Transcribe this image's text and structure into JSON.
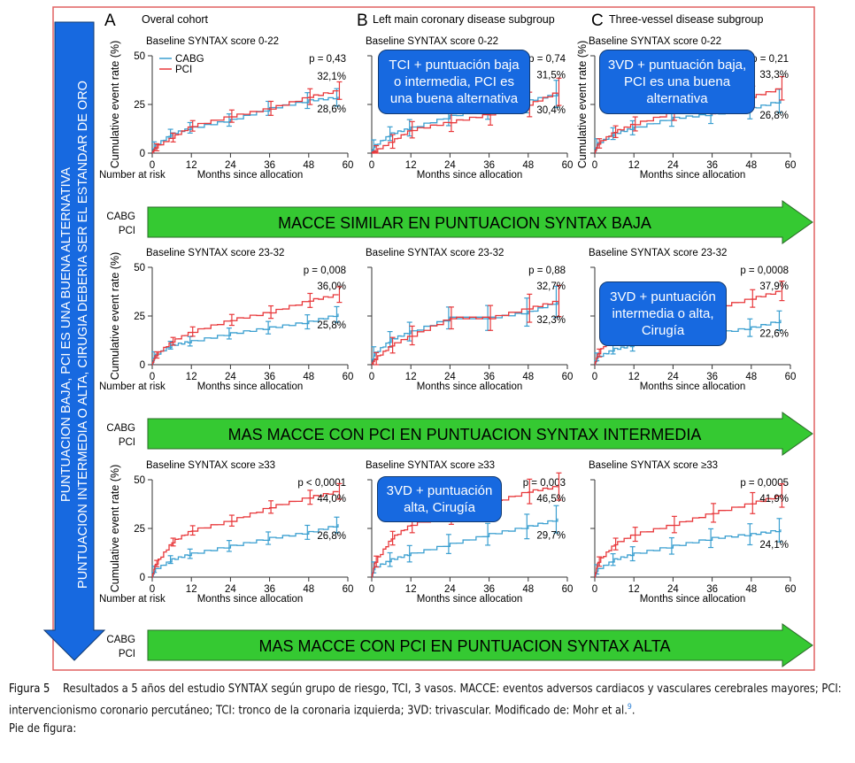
{
  "colors": {
    "cabg": "#3a9fd0",
    "pci": "#e8383b",
    "arrow_green": "#35c932",
    "arrow_blue": "#1769e0",
    "frame": "#e06060"
  },
  "vertical_arrow": {
    "line1": "PUNTUACION BAJA, PCI ES UNA BUENA ALTERNATIVA",
    "line2": "PUNTUACION INTERMEDIA O ALTA, CIRUGIA DEBERIA SER EL ESTANDAR DE ORO"
  },
  "columns": [
    {
      "letter": "A",
      "title": "Overal cohort"
    },
    {
      "letter": "B",
      "title": "Left main coronary disease subgroup"
    },
    {
      "letter": "C",
      "title": "Three-vessel disease subgroup"
    }
  ],
  "rows": [
    {
      "arrow_text": "MACCE SIMILAR EN PUNTUACION SYNTAX BAJA"
    },
    {
      "arrow_text": "MAS MACCE CON PCI EN PUNTUACION SYNTAX INTERMEDIA"
    },
    {
      "arrow_text": "MAS MACCE CON PCI EN PUNTUACION SYNTAX ALTA"
    }
  ],
  "risk_labels": {
    "number_at_risk": "Number at risk",
    "cabg": "CABG",
    "pci": "PCI"
  },
  "callouts": [
    {
      "text": "TCI + puntuación baja o intermedia, PCI es una buena alternativa"
    },
    {
      "text": "3VD + puntuación baja, PCI es una buena alternativa"
    },
    {
      "text": "3VD + puntuación intermedia o alta, Cirugía"
    },
    {
      "text": "3VD + puntuación alta, Cirugía"
    }
  ],
  "caption": {
    "label": "Figura 5",
    "text": "Resultados a 5 años del estudio SYNTAX según grupo de riesgo, TCI, 3 vasos. MACCE: eventos adversos cardiacos y vasculares cerebrales mayores; PCI: intervencionismo coronario percutáneo; TCI: tronco de la coronaria izquierda; 3VD: trivascular. Modificado de: Mohr et al.",
    "ref": "9",
    "tail": ".",
    "footer": "Pie de figura:"
  },
  "chart_data": {
    "type": "line",
    "xlabel": "Months since allocation",
    "ylabel": "Cumulative event rate (%)",
    "xticks": [
      0,
      12,
      24,
      36,
      48,
      60
    ],
    "yticks": [
      0,
      25,
      50
    ],
    "xlim": [
      0,
      60
    ],
    "ylim": [
      0,
      50
    ],
    "legend": [
      "CABG",
      "PCI"
    ],
    "legend_placement": "top-left",
    "months": [
      0,
      1,
      6,
      12,
      24,
      36,
      48,
      57
    ],
    "panels": [
      {
        "col": 0,
        "row": 0,
        "subtitle": "Baseline SYNTAX score 0-22",
        "p": "p = 0,43",
        "cabg_end": "28,6%",
        "pci_end": "32,1%",
        "cabg": [
          0,
          4,
          10,
          13,
          17,
          23,
          27,
          28.6
        ],
        "pci": [
          0,
          3,
          8,
          14,
          19,
          23,
          29,
          32.1
        ],
        "ci": 4.5
      },
      {
        "col": 1,
        "row": 0,
        "subtitle": "Baseline SYNTAX score 0-22",
        "p": "p = 0,74",
        "cabg_end": "30,4%",
        "pci_end": "31,5%",
        "cabg": [
          0,
          4,
          10,
          13,
          19,
          23,
          27,
          30.4
        ],
        "pci": [
          0,
          1,
          6,
          12,
          16,
          20,
          25,
          31.5
        ],
        "ci": 7
      },
      {
        "col": 2,
        "row": 0,
        "subtitle": "Baseline SYNTAX score 0-22",
        "p": "p = 0,21",
        "cabg_end": "26,8%",
        "pci_end": "33,3%",
        "cabg": [
          0,
          5,
          10,
          13,
          18,
          20,
          23,
          26.8
        ],
        "pci": [
          0,
          5,
          11,
          15,
          21,
          25,
          29,
          33.3
        ],
        "ci": 6
      },
      {
        "col": 0,
        "row": 1,
        "subtitle": "Baseline SYNTAX score 23-32",
        "p": "p = 0,008",
        "cabg_end": "25,8%",
        "pci_end": "36,0%",
        "cabg": [
          0,
          5,
          10,
          12,
          16,
          19,
          22,
          25.8
        ],
        "pci": [
          0,
          5,
          12,
          17,
          23,
          27,
          33,
          36.0
        ],
        "ci": 4
      },
      {
        "col": 1,
        "row": 1,
        "subtitle": "Baseline SYNTAX score 23-32",
        "p": "p = 0,88",
        "cabg_end": "32,3%",
        "pci_end": "32,7%",
        "cabg": [
          0,
          6,
          13,
          17,
          24,
          24,
          27,
          32.3
        ],
        "pci": [
          0,
          3,
          10,
          15,
          24,
          24,
          29,
          32.7
        ],
        "ci": 8
      },
      {
        "col": 2,
        "row": 1,
        "subtitle": "Baseline SYNTAX score 23-32",
        "p": "p = 0,0008",
        "cabg_end": "22,6%",
        "pci_end": "37,9%",
        "cabg": [
          0,
          4,
          8,
          10,
          14,
          16,
          19,
          22.6
        ],
        "pci": [
          0,
          6,
          17,
          20,
          25,
          29,
          34,
          37.9
        ],
        "ci": 5
      },
      {
        "col": 0,
        "row": 2,
        "subtitle": "Baseline SYNTAX score ≥33",
        "p": "p < 0,0001",
        "cabg_end": "26,8%",
        "pci_end": "44,0%",
        "cabg": [
          0,
          4,
          9,
          12,
          16,
          20,
          23,
          26.8
        ],
        "pci": [
          0,
          7,
          18,
          24,
          29,
          36,
          41,
          44.0
        ],
        "ci": 4
      },
      {
        "col": 1,
        "row": 2,
        "subtitle": "Baseline SYNTAX score ≥33",
        "p": "p = 0,003",
        "cabg_end": "29,7%",
        "pci_end": "46,5%",
        "cabg": [
          0,
          5,
          9,
          12,
          17,
          22,
          26,
          29.7
        ],
        "pci": [
          0,
          8,
          20,
          27,
          32,
          38,
          44,
          46.5
        ],
        "ci": 7
      },
      {
        "col": 2,
        "row": 2,
        "subtitle": "Baseline SYNTAX score ≥33",
        "p": "p = 0,0005",
        "cabg_end": "24,1%",
        "pci_end": "41,9%",
        "cabg": [
          0,
          4,
          9,
          12,
          16,
          20,
          22,
          24.1
        ],
        "pci": [
          0,
          8,
          17,
          22,
          27,
          33,
          38,
          41.9
        ],
        "ci": 6
      }
    ]
  }
}
